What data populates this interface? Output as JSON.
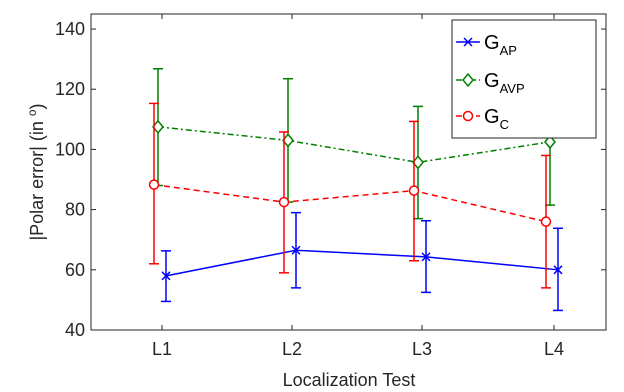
{
  "chart_data": {
    "type": "line",
    "xlabel": "Localization Test",
    "ylabel": "|Polar error| (in °)",
    "ylabel_prefix": "|Polar error| (in ",
    "ylabel_superscript": "o",
    "ylabel_suffix": ")",
    "categories": [
      "L1",
      "L2",
      "L3",
      "L4"
    ],
    "ylim": [
      40,
      145
    ],
    "yticks": [
      "40",
      "60",
      "80",
      "100",
      "120",
      "140"
    ],
    "grid": false,
    "legend_position": "top-right",
    "series": [
      {
        "name": "G_AP",
        "label_main": "G",
        "label_sub": "AP",
        "color": "#0000ff",
        "line_style": "solid",
        "marker": "x",
        "values": [
          58.0,
          66.5,
          64.3,
          60.0
        ],
        "errors_low": [
          49.5,
          54.0,
          52.5,
          46.5
        ],
        "errors_high": [
          66.3,
          79.0,
          76.3,
          73.8
        ]
      },
      {
        "name": "G_AVP",
        "label_main": "G",
        "label_sub": "AVP",
        "color": "#008000",
        "line_style": "dashdot",
        "marker": "diamond",
        "values": [
          107.5,
          103.0,
          95.7,
          102.5
        ],
        "errors_low": [
          88.0,
          82.5,
          77.0,
          81.5
        ],
        "errors_high": [
          126.8,
          123.5,
          114.3,
          123.0
        ]
      },
      {
        "name": "G_C",
        "label_main": "G",
        "label_sub": "C",
        "color": "#ff0000",
        "line_style": "dashed",
        "marker": "circle",
        "values": [
          88.3,
          82.5,
          86.3,
          76.0
        ],
        "errors_low": [
          62.0,
          59.0,
          63.0,
          54.0
        ],
        "errors_high": [
          115.3,
          105.8,
          109.3,
          98.0
        ]
      }
    ]
  }
}
